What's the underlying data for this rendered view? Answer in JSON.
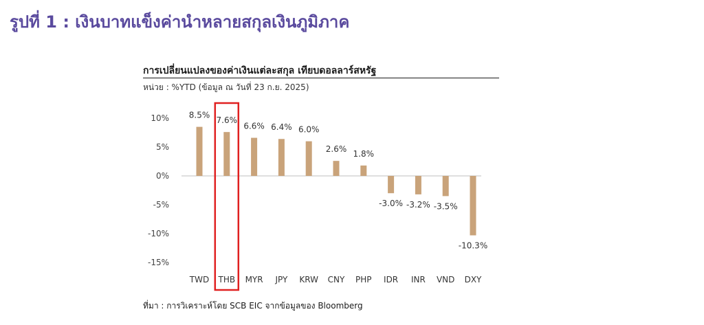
{
  "figure": {
    "title": "รูปที่ 1 : เงินบาทแข็งค่านำหลายสกุลเงินภูมิภาค"
  },
  "colors": {
    "title": "#5a4a9e",
    "bar": "#c9a37a",
    "highlight": "#e02020",
    "axis_text": "#444444",
    "zero_line": "#bfbfbf"
  },
  "chart_data": {
    "type": "bar",
    "title": "การเปลี่ยนแปลงของค่าเงินแต่ละสกุล  เทียบดอลลาร์สหรัฐ",
    "subtitle": "หน่วย : %YTD (ข้อมูล ณ วันที่ 23 ก.ย. 2025)",
    "categories": [
      "TWD",
      "THB",
      "MYR",
      "JPY",
      "KRW",
      "CNY",
      "PHP",
      "IDR",
      "INR",
      "VND",
      "DXY"
    ],
    "values": [
      8.5,
      7.6,
      6.6,
      6.4,
      6.0,
      2.6,
      1.8,
      -3.0,
      -3.2,
      -3.5,
      -10.3
    ],
    "data_labels": [
      "8.5%",
      "7.6%",
      "6.6%",
      "6.4%",
      "6.0%",
      "2.6%",
      "1.8%",
      "-3.0%",
      "-3.2%",
      "-3.5%",
      "-10.3%"
    ],
    "highlighted_category": "THB",
    "y_ticks": [
      10,
      5,
      0,
      -5,
      -10,
      -15
    ],
    "y_tick_labels": [
      "10%",
      "5%",
      "0%",
      "-5%",
      "-10%",
      "-15%"
    ],
    "ylim": [
      -15,
      10
    ],
    "xlabel": "",
    "ylabel": "",
    "grid": false,
    "legend": "none"
  },
  "source": "ที่มา : การวิเคราะห์โดย SCB EIC จากข้อมูลของ Bloomberg"
}
